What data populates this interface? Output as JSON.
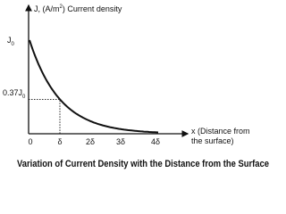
{
  "y_axis": {
    "label": {
      "main": "J, (A/m",
      "superscript": "2",
      "rest": ") Current density"
    },
    "ticks": [
      {
        "main": "J",
        "subscript": "0"
      },
      {
        "main": "0.37J",
        "subscript": "0"
      }
    ]
  },
  "x_axis": {
    "label": [
      "x (Distance from",
      "the surface)"
    ],
    "ticks": [
      "0",
      "δ",
      "2δ",
      "3δ",
      "4δ"
    ]
  },
  "caption": "Variation of Current Density with the Distance from the Surface"
}
